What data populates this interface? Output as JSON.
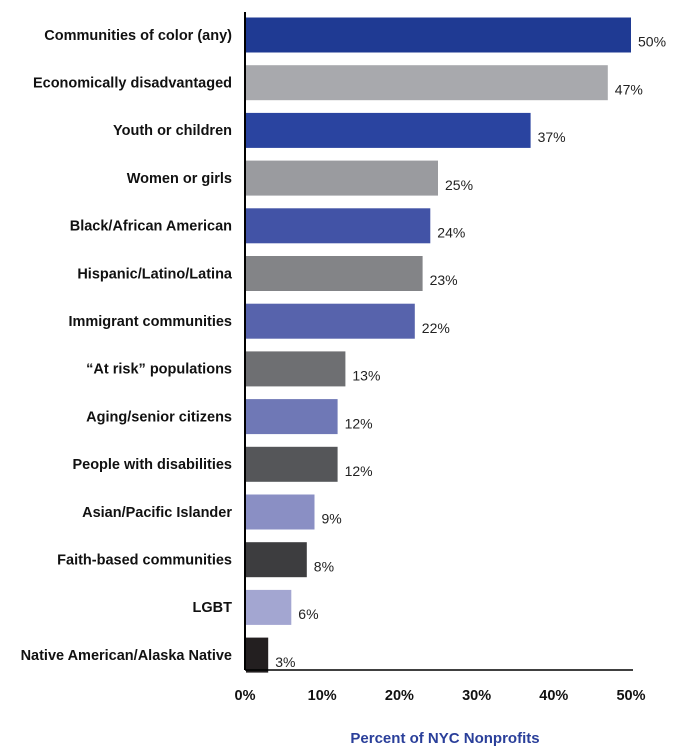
{
  "chart_data": {
    "type": "bar",
    "orientation": "horizontal",
    "categories": [
      "Communities of color (any)",
      "Economically disadvantaged",
      "Youth or children",
      "Women or girls",
      "Black/African American",
      "Hispanic/Latino/Latina",
      "Immigrant communities",
      "“At risk” populations",
      "Aging/senior citizens",
      "People with disabilities",
      "Asian/Pacific Islander",
      "Faith-based communities",
      "LGBT",
      "Native American/Alaska Native"
    ],
    "values": [
      50,
      47,
      37,
      25,
      24,
      23,
      22,
      13,
      12,
      12,
      9,
      8,
      6,
      3
    ],
    "value_labels": [
      "50%",
      "47%",
      "37%",
      "25%",
      "24%",
      "23%",
      "22%",
      "13%",
      "12%",
      "12%",
      "9%",
      "8%",
      "6%",
      "3%"
    ],
    "colors": [
      "#1f3a93",
      "#a8a9ad",
      "#2a44a0",
      "#9a9b9f",
      "#4253a6",
      "#838487",
      "#5763ac",
      "#6e6f72",
      "#6f78b6",
      "#555659",
      "#8a8fc4",
      "#3d3d3f",
      "#a3a6d1",
      "#231f20"
    ],
    "xlim": [
      0,
      50
    ],
    "xticks": [
      0,
      10,
      20,
      30,
      40,
      50
    ],
    "xtick_labels": [
      "0%",
      "10%",
      "20%",
      "30%",
      "40%",
      "50%"
    ],
    "xlabel": "Percent of NYC Nonprofits",
    "ylabel": "",
    "title": "",
    "grid": false,
    "legend": "none"
  }
}
